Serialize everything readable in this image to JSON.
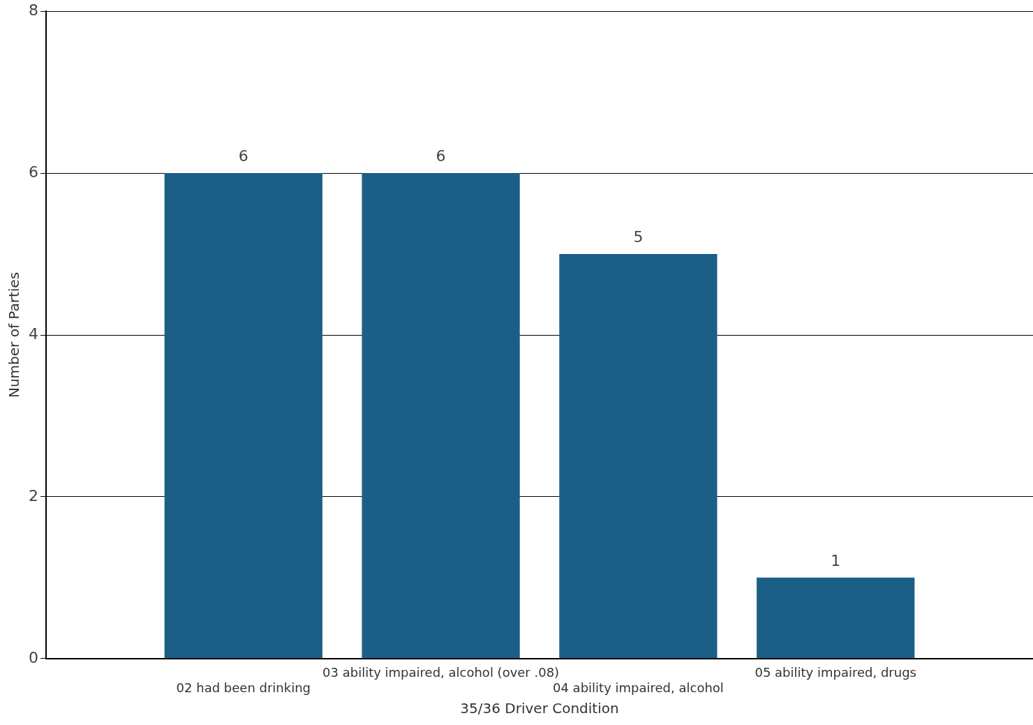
{
  "chart_data": {
    "type": "bar",
    "xlabel": "35/36 Driver Condition",
    "ylabel": "Number of Parties",
    "categories": [
      "02 had been drinking",
      "03 ability impaired, alcohol (over .08)",
      "04 ability impaired, alcohol",
      "05 ability impaired, drugs"
    ],
    "values": [
      6,
      6,
      5,
      1
    ],
    "color": "#1b5f86",
    "ylim": [
      0,
      8
    ],
    "yticks": [
      0,
      2,
      4,
      6,
      8
    ],
    "grid": "y",
    "data_labels": true
  }
}
